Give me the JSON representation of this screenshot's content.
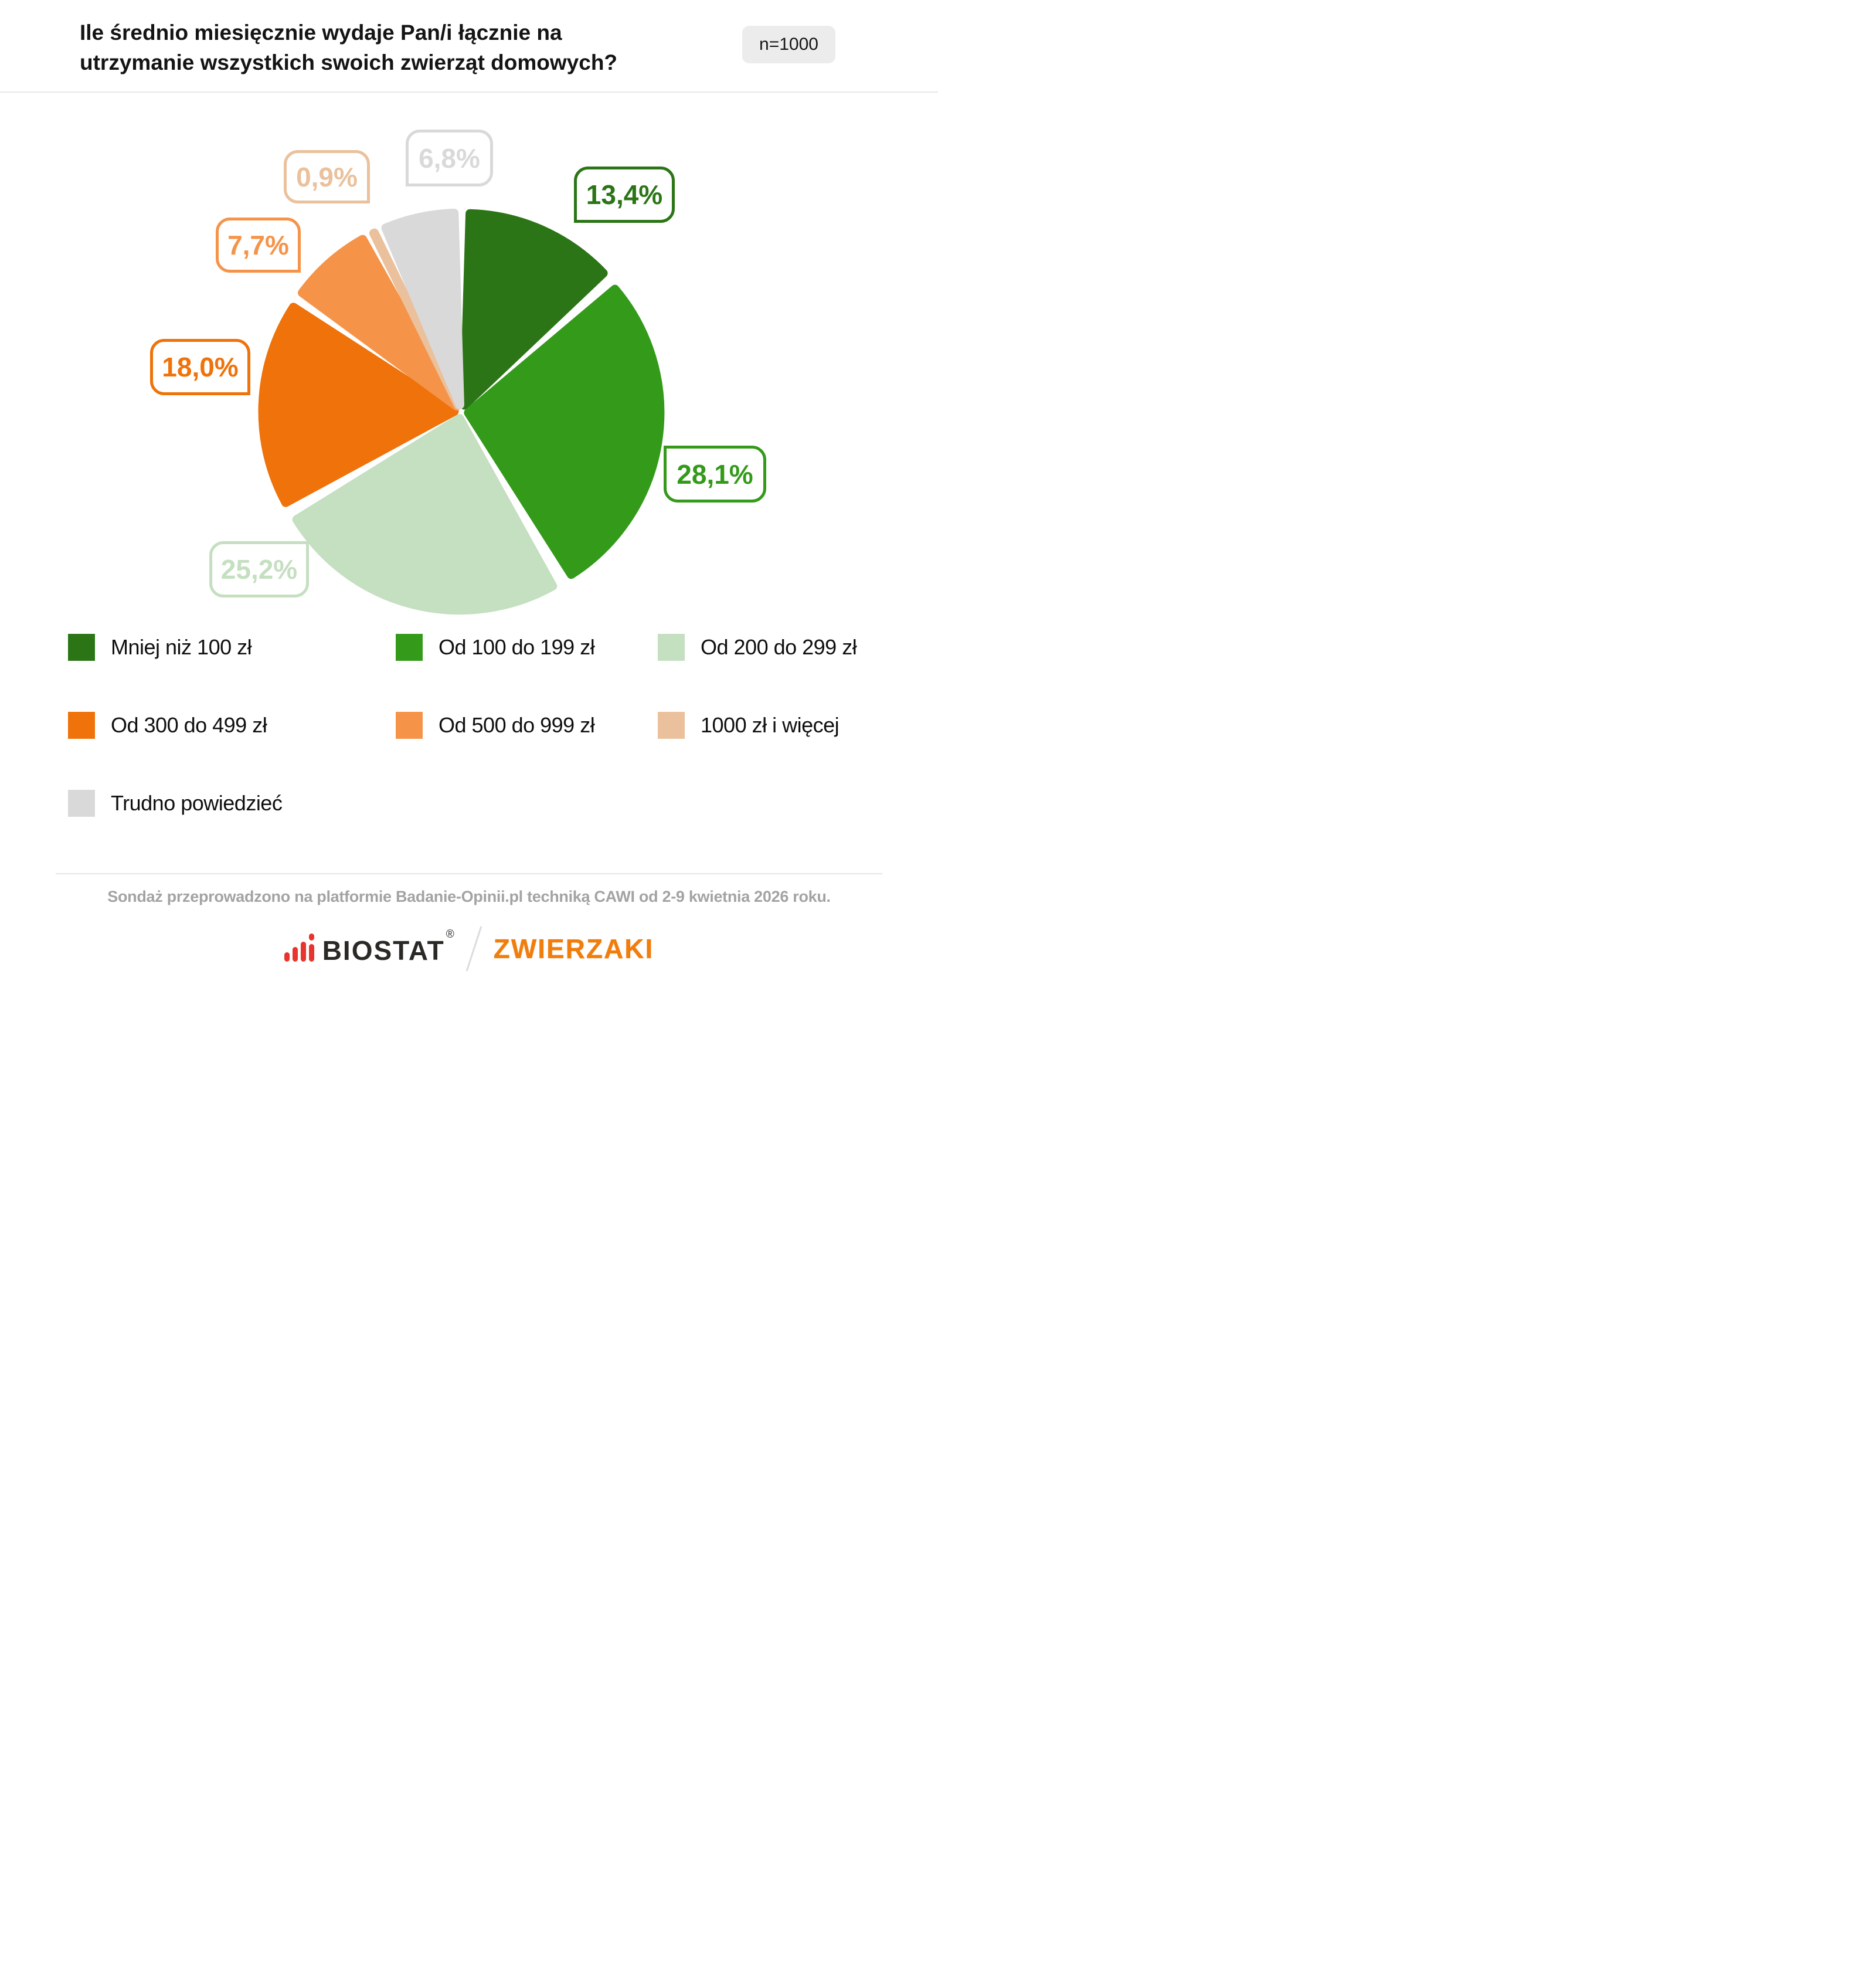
{
  "header": {
    "title": "Ile średnio miesięcznie wydaje Pan/i łącznie na utrzymanie wszystkich swoich zwierząt domowych?",
    "sample_badge": "n=1000"
  },
  "chart_data": {
    "type": "pie",
    "title": "Ile średnio miesięcznie wydaje Pan/i łącznie na utrzymanie wszystkich swoich zwierząt domowych?",
    "sample_size": 1000,
    "unit": "%",
    "start_angle_deg": 0,
    "direction": "clockwise",
    "legend_position": "bottom",
    "slices": [
      {
        "label": "Mniej niż 100 zł",
        "value": 13.4,
        "display": "13,4%",
        "color": "#2B7516"
      },
      {
        "label": "Od 100 do 199 zł",
        "value": 28.1,
        "display": "28,1%",
        "color": "#339A1A"
      },
      {
        "label": "Od 200 do 299 zł",
        "value": 25.2,
        "display": "25,2%",
        "color": "#C5DFC1"
      },
      {
        "label": "Od 300 do 499 zł",
        "value": 18.0,
        "display": "18,0%",
        "color": "#EF720A"
      },
      {
        "label": "Od 500 do 999 zł",
        "value": 7.7,
        "display": "7,7%",
        "color": "#F59449"
      },
      {
        "label": "1000 zł i więcej",
        "value": 0.9,
        "display": "0,9%",
        "color": "#EAC19C"
      },
      {
        "label": "Trudno powiedzieć",
        "value": 6.8,
        "display": "6,8%",
        "color": "#D9D9D9"
      }
    ]
  },
  "footer": {
    "note": "Sondaż przeprowadzono na platformie Badanie-Opinii.pl techniką CAWI od 2-9 kwietnia 2026 roku.",
    "brand_left": "BIOSTAT",
    "brand_left_mark": "®",
    "brand_right": "ZWIERZAKI"
  }
}
